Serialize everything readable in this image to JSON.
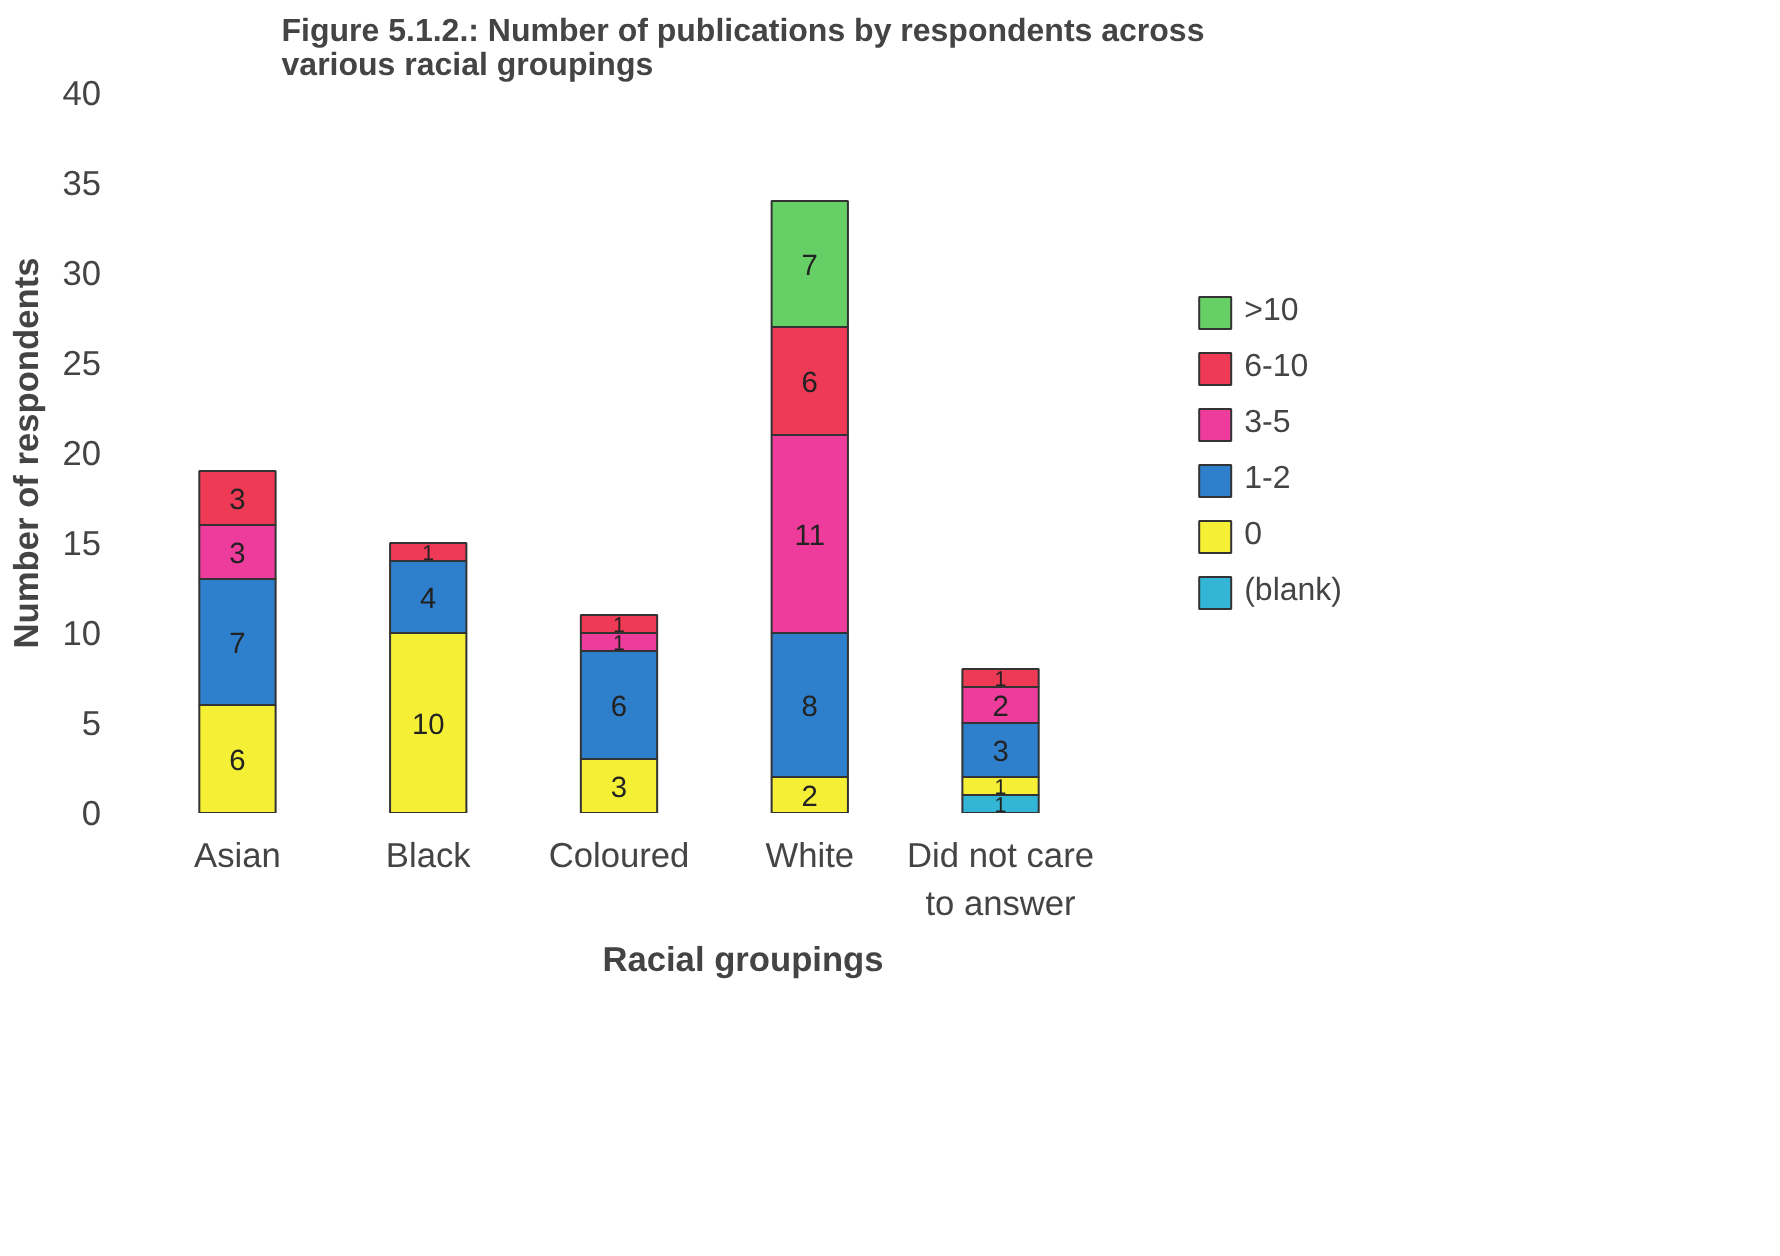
{
  "chart_data": {
    "type": "bar",
    "stacked": true,
    "title": "Figure 5.1.2.: Number of publications by respondents across various racial groupings",
    "xlabel": "Racial groupings",
    "ylabel": "Number of respondents",
    "categories": [
      "Asian",
      "Black",
      "Coloured",
      "White",
      "Did not care to answer"
    ],
    "series": [
      {
        "name": "(blank)",
        "color": "#33b5d6",
        "values": [
          null,
          null,
          null,
          null,
          1
        ]
      },
      {
        "name": "0",
        "color": "#f5f035",
        "values": [
          6,
          10,
          3,
          2,
          1
        ]
      },
      {
        "name": "1-2",
        "color": "#2f80cc",
        "values": [
          7,
          4,
          6,
          8,
          3
        ]
      },
      {
        "name": "3-5",
        "color": "#ee3c9c",
        "values": [
          3,
          null,
          1,
          11,
          2
        ]
      },
      {
        "name": "6-10",
        "color": "#ee3a55",
        "values": [
          3,
          1,
          1,
          6,
          1
        ]
      },
      {
        "name": ">10",
        "color": "#66d066",
        "values": [
          null,
          null,
          null,
          7,
          null
        ]
      }
    ],
    "ylim": [
      0,
      40
    ],
    "yticks": [
      0,
      5,
      10,
      15,
      20,
      25,
      30,
      35,
      40
    ],
    "data_labels": true,
    "legend": "right",
    "grid": false
  }
}
